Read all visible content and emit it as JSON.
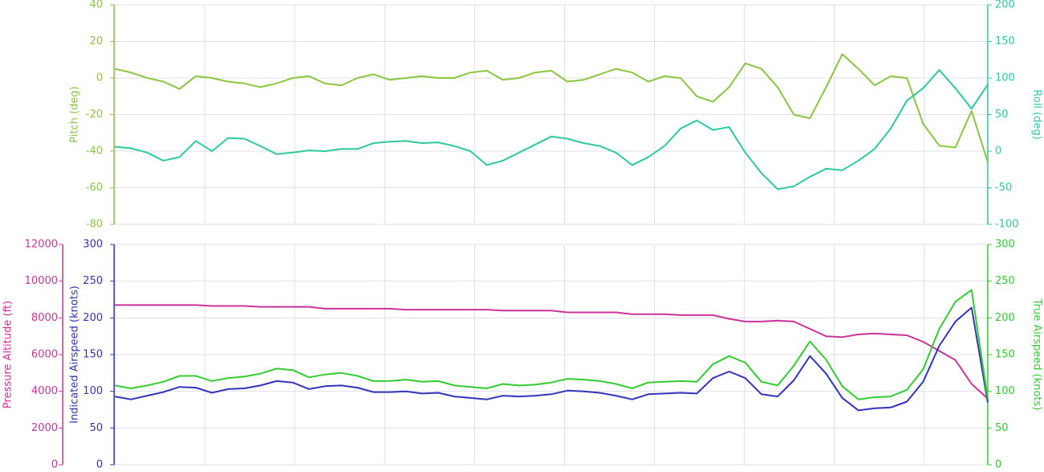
{
  "chart_data": [
    {
      "type": "line",
      "grid": true,
      "ylabel": "Pitch (deg)",
      "ylim": [
        -80,
        40
      ],
      "yticks": [
        -80,
        -60,
        -40,
        -20,
        0,
        20,
        40
      ],
      "y2label": "Roll (deg)",
      "y2lim": [
        -100,
        200
      ],
      "y2ticks": [
        -100,
        -50,
        0,
        50,
        100,
        150,
        200
      ],
      "series": [
        {
          "axis": "y",
          "color": "#8cc63f",
          "values": [
            5,
            3,
            0,
            -2,
            -6,
            1,
            0,
            -2,
            -3,
            -5,
            -3,
            0,
            1,
            -3,
            -4,
            0,
            2,
            -1,
            0,
            1,
            0,
            0,
            3,
            4,
            -1,
            0,
            3,
            4,
            -2,
            -1,
            2,
            5,
            3,
            -2,
            1,
            0,
            -10,
            -13,
            -5,
            8,
            5,
            -5,
            -20,
            -22,
            -5,
            13,
            5,
            -4,
            1,
            0,
            -25,
            -37,
            -38,
            -18,
            -46
          ]
        },
        {
          "axis": "y2",
          "color": "#2ec99c",
          "values": [
            6,
            4,
            -2,
            -13,
            -8,
            14,
            0,
            18,
            17,
            7,
            -4,
            -2,
            1,
            0,
            3,
            3,
            11,
            13,
            14,
            11,
            12,
            7,
            0,
            -19,
            -13,
            -2,
            9,
            20,
            17,
            11,
            7,
            -2,
            -19,
            -8,
            7,
            31,
            42,
            29,
            33,
            -2,
            -30,
            -52,
            -48,
            -35,
            -24,
            -26,
            -13,
            3,
            31,
            69,
            86,
            111,
            86,
            58,
            91
          ]
        }
      ]
    },
    {
      "type": "line",
      "grid": true,
      "ylabel": "Pressure Altitude (ft)",
      "ylim": [
        0,
        12000
      ],
      "yticks": [
        0,
        2000,
        4000,
        6000,
        8000,
        10000,
        12000
      ],
      "y2label": "Indicated Airspeed (knots)",
      "y2lim": [
        0,
        300
      ],
      "y2ticks": [
        0,
        50,
        100,
        150,
        200,
        250,
        300
      ],
      "y3label": "True Airspeed (knots)",
      "y3lim": [
        0,
        300
      ],
      "y3ticks": [
        0,
        50,
        100,
        150,
        200,
        250,
        300
      ],
      "series": [
        {
          "axis": "y",
          "color": "#cc3399",
          "values": [
            8700,
            8700,
            8700,
            8700,
            8700,
            8700,
            8650,
            8650,
            8650,
            8600,
            8600,
            8600,
            8600,
            8500,
            8500,
            8500,
            8500,
            8500,
            8450,
            8450,
            8450,
            8450,
            8450,
            8450,
            8400,
            8400,
            8400,
            8400,
            8300,
            8300,
            8300,
            8300,
            8200,
            8200,
            8200,
            8150,
            8150,
            8150,
            7950,
            7800,
            7800,
            7850,
            7800,
            7400,
            7000,
            6950,
            7100,
            7150,
            7100,
            7050,
            6700,
            6200,
            5700,
            4400,
            3600
          ]
        },
        {
          "axis": "y2",
          "color": "#3333bb",
          "values": [
            93,
            89,
            94,
            99,
            106,
            105,
            98,
            103,
            104,
            108,
            114,
            112,
            103,
            107,
            108,
            105,
            99,
            99,
            100,
            97,
            98,
            93,
            91,
            89,
            94,
            93,
            94,
            96,
            101,
            100,
            98,
            94,
            89,
            96,
            97,
            98,
            97,
            118,
            127,
            118,
            96,
            93,
            115,
            148,
            124,
            91,
            74,
            77,
            78,
            86,
            113,
            162,
            195,
            214,
            85
          ]
        },
        {
          "axis": "y3",
          "color": "#33cc33",
          "values": [
            108,
            104,
            108,
            113,
            121,
            121,
            114,
            118,
            120,
            124,
            131,
            129,
            119,
            123,
            125,
            121,
            114,
            114,
            116,
            113,
            114,
            108,
            106,
            104,
            110,
            108,
            109,
            112,
            117,
            116,
            114,
            110,
            104,
            112,
            113,
            114,
            113,
            137,
            148,
            139,
            113,
            108,
            135,
            168,
            143,
            107,
            89,
            92,
            93,
            102,
            130,
            185,
            222,
            238,
            90
          ]
        }
      ]
    }
  ]
}
